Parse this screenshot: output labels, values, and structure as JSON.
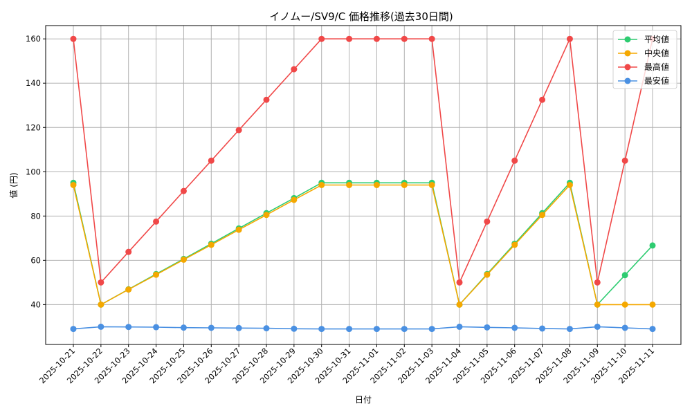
{
  "chart_data": {
    "type": "line",
    "title": "イノムー/SV9/C 価格推移(過去30日間)",
    "xlabel": "日付",
    "ylabel": "値 (円)",
    "ylim": [
      22,
      166
    ],
    "yticks": [
      40,
      60,
      80,
      100,
      120,
      140,
      160
    ],
    "grid": true,
    "legend_position": "top-right",
    "categories": [
      "2025-10-21",
      "2025-10-22",
      "2025-10-23",
      "2025-10-24",
      "2025-10-25",
      "2025-10-26",
      "2025-10-27",
      "2025-10-28",
      "2025-10-29",
      "2025-10-30",
      "2025-10-31",
      "2025-11-01",
      "2025-11-02",
      "2025-11-03",
      "2025-11-04",
      "2025-11-05",
      "2025-11-06",
      "2025-11-07",
      "2025-11-08",
      "2025-11-09",
      "2025-11-10",
      "2025-11-11"
    ],
    "series": [
      {
        "name": "平均値",
        "color": "#2ecc71",
        "values": [
          95,
          40,
          46.9,
          53.8,
          60.6,
          67.5,
          74.4,
          81.3,
          88.1,
          95,
          95,
          95,
          95,
          95,
          40,
          53.8,
          67.5,
          81.3,
          95,
          40,
          53.3,
          66.7
        ]
      },
      {
        "name": "中央値",
        "color": "#f5a800",
        "values": [
          94,
          40,
          46.8,
          53.5,
          60.3,
          67,
          73.8,
          80.5,
          87.3,
          94,
          94,
          94,
          94,
          94,
          40,
          53.5,
          67,
          80.5,
          94,
          40,
          40,
          40
        ]
      },
      {
        "name": "最高値",
        "color": "#f04848",
        "values": [
          160,
          50,
          63.8,
          77.5,
          91.3,
          105,
          118.8,
          132.5,
          146.3,
          160,
          160,
          160,
          160,
          160,
          50,
          77.5,
          105,
          132.5,
          160,
          50,
          105,
          160
        ]
      },
      {
        "name": "最安値",
        "color": "#4a90e2",
        "values": [
          29,
          30,
          29.9,
          29.8,
          29.6,
          29.5,
          29.4,
          29.3,
          29.1,
          29,
          29,
          29,
          29,
          29,
          30,
          29.7,
          29.5,
          29.2,
          29,
          30,
          29.5,
          29
        ]
      }
    ]
  }
}
